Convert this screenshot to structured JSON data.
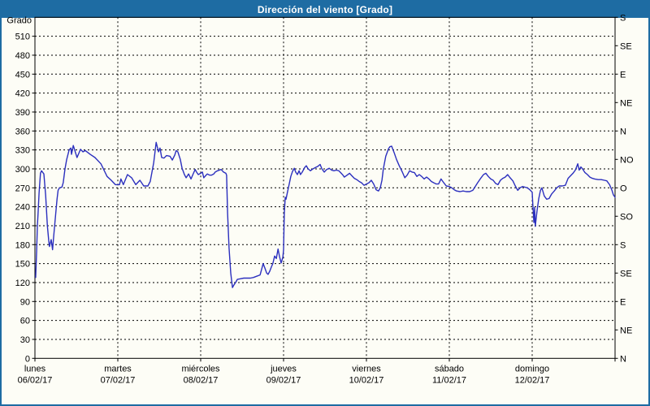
{
  "window": {
    "title": "Dirección del viento [Grado]"
  },
  "chart_data": {
    "type": "line",
    "title": "Dirección del viento [Grado]",
    "ylabel": "Grado",
    "y_axis_left": {
      "label": "Grado",
      "min": 0,
      "max": 540,
      "tick_step": 30,
      "labeled_max": 510
    },
    "y_axis_right": {
      "ticks": [
        {
          "deg": 540,
          "label": "S"
        },
        {
          "deg": 495,
          "label": "SE"
        },
        {
          "deg": 450,
          "label": "E"
        },
        {
          "deg": 405,
          "label": "NE"
        },
        {
          "deg": 360,
          "label": "N"
        },
        {
          "deg": 315,
          "label": "NO"
        },
        {
          "deg": 270,
          "label": "O"
        },
        {
          "deg": 225,
          "label": "SO"
        },
        {
          "deg": 180,
          "label": "S"
        },
        {
          "deg": 135,
          "label": "SE"
        },
        {
          "deg": 90,
          "label": "E"
        },
        {
          "deg": 45,
          "label": "NE"
        },
        {
          "deg": 0,
          "label": "N"
        }
      ]
    },
    "x_axis": {
      "hours_total": 168,
      "day_step_hours": 24,
      "days": [
        {
          "name": "lunes",
          "date": "06/02/17"
        },
        {
          "name": "martes",
          "date": "07/02/17"
        },
        {
          "name": "miércoles",
          "date": "08/02/17"
        },
        {
          "name": "jueves",
          "date": "09/02/17"
        },
        {
          "name": "viernes",
          "date": "10/02/17"
        },
        {
          "name": "sábado",
          "date": "11/02/17"
        },
        {
          "name": "domingo",
          "date": "12/02/17"
        }
      ]
    },
    "grid": {
      "style": "dashed",
      "horizontal_step_deg": 30,
      "vertical_step_hours": 24
    },
    "colors": {
      "line": "#2b2fbe",
      "titlebar": "#1e6ca3",
      "border": "#1e6ca3",
      "grid": "#000000",
      "background": "#fdfdf6",
      "text": "#000000"
    },
    "series": [
      {
        "name": "Dirección del viento",
        "unit": "Grado",
        "points": [
          [
            0.2,
            128
          ],
          [
            0.5,
            170
          ],
          [
            0.7,
            210
          ],
          [
            0.9,
            228
          ],
          [
            1.2,
            262
          ],
          [
            1.6,
            293
          ],
          [
            1.9,
            297
          ],
          [
            2.6,
            292
          ],
          [
            3.1,
            258
          ],
          [
            3.6,
            210
          ],
          [
            4.0,
            186
          ],
          [
            4.2,
            177
          ],
          [
            4.7,
            188
          ],
          [
            5.1,
            172
          ],
          [
            5.4,
            192
          ],
          [
            6.0,
            228
          ],
          [
            6.4,
            252
          ],
          [
            6.7,
            266
          ],
          [
            7.1,
            270
          ],
          [
            7.8,
            271
          ],
          [
            8.2,
            278
          ],
          [
            8.7,
            300
          ],
          [
            9.2,
            315
          ],
          [
            9.9,
            330
          ],
          [
            10.4,
            333
          ],
          [
            10.6,
            323
          ],
          [
            11.1,
            337
          ],
          [
            12.2,
            318
          ],
          [
            13.2,
            331
          ],
          [
            13.9,
            327
          ],
          [
            14.6,
            329
          ],
          [
            16.0,
            323
          ],
          [
            17.4,
            318
          ],
          [
            19.1,
            308
          ],
          [
            20.9,
            288
          ],
          [
            22.1,
            282
          ],
          [
            23.3,
            275
          ],
          [
            24.5,
            275
          ],
          [
            24.9,
            284
          ],
          [
            25.6,
            275
          ],
          [
            26.8,
            291
          ],
          [
            28.0,
            286
          ],
          [
            29.2,
            275
          ],
          [
            30.4,
            282
          ],
          [
            31.5,
            273
          ],
          [
            32.7,
            273
          ],
          [
            33.4,
            280
          ],
          [
            34.4,
            310
          ],
          [
            35.1,
            342
          ],
          [
            35.8,
            327
          ],
          [
            36.2,
            333
          ],
          [
            36.7,
            318
          ],
          [
            37.4,
            317
          ],
          [
            38.1,
            321
          ],
          [
            39.1,
            320
          ],
          [
            39.8,
            314
          ],
          [
            40.5,
            322
          ],
          [
            40.9,
            329
          ],
          [
            41.4,
            327
          ],
          [
            42.1,
            315
          ],
          [
            42.6,
            301
          ],
          [
            43.3,
            291
          ],
          [
            43.8,
            286
          ],
          [
            44.5,
            292
          ],
          [
            45.2,
            284
          ],
          [
            45.9,
            293
          ],
          [
            46.4,
            299
          ],
          [
            46.8,
            295
          ],
          [
            47.3,
            291
          ],
          [
            48.0,
            293
          ],
          [
            48.5,
            295
          ],
          [
            48.9,
            286
          ],
          [
            49.4,
            289
          ],
          [
            49.9,
            292
          ],
          [
            50.6,
            290
          ],
          [
            51.1,
            290
          ],
          [
            51.8,
            292
          ],
          [
            52.2,
            295
          ],
          [
            52.9,
            297
          ],
          [
            53.9,
            299
          ],
          [
            54.6,
            295
          ],
          [
            55.3,
            293
          ],
          [
            55.5,
            290
          ],
          [
            55.8,
            230
          ],
          [
            56.2,
            175
          ],
          [
            56.7,
            135
          ],
          [
            57.2,
            112
          ],
          [
            57.6,
            116
          ],
          [
            58.1,
            120
          ],
          [
            58.6,
            125
          ],
          [
            59.5,
            126
          ],
          [
            60.5,
            127
          ],
          [
            61.4,
            127
          ],
          [
            62.4,
            127
          ],
          [
            63.3,
            128
          ],
          [
            64.2,
            130
          ],
          [
            65.2,
            132
          ],
          [
            65.6,
            140
          ],
          [
            66.1,
            150
          ],
          [
            66.6,
            143
          ],
          [
            67.1,
            135
          ],
          [
            67.5,
            133
          ],
          [
            68.0,
            138
          ],
          [
            68.5,
            145
          ],
          [
            68.9,
            150
          ],
          [
            69.4,
            162
          ],
          [
            69.9,
            158
          ],
          [
            70.4,
            173
          ],
          [
            70.8,
            162
          ],
          [
            71.3,
            151
          ],
          [
            71.8,
            160
          ],
          [
            72.0,
            172
          ],
          [
            72.2,
            230
          ],
          [
            72.5,
            255
          ],
          [
            72.7,
            252
          ],
          [
            73.2,
            265
          ],
          [
            73.6,
            275
          ],
          [
            74.1,
            288
          ],
          [
            74.6,
            296
          ],
          [
            75.1,
            301
          ],
          [
            75.5,
            295
          ],
          [
            76.0,
            291
          ],
          [
            76.5,
            297
          ],
          [
            76.9,
            291
          ],
          [
            77.4,
            295
          ],
          [
            78.1,
            302
          ],
          [
            78.6,
            305
          ],
          [
            79.1,
            300
          ],
          [
            79.8,
            297
          ],
          [
            80.5,
            300
          ],
          [
            81.2,
            302
          ],
          [
            81.9,
            304
          ],
          [
            82.6,
            307
          ],
          [
            83.1,
            300
          ],
          [
            83.8,
            295
          ],
          [
            84.5,
            299
          ],
          [
            85.2,
            301
          ],
          [
            85.9,
            298
          ],
          [
            86.6,
            297
          ],
          [
            87.3,
            298
          ],
          [
            88.0,
            297
          ],
          [
            88.7,
            293
          ],
          [
            89.2,
            290
          ],
          [
            89.6,
            287
          ],
          [
            90.4,
            290
          ],
          [
            91.1,
            293
          ],
          [
            91.8,
            289
          ],
          [
            92.5,
            285
          ],
          [
            93.2,
            283
          ],
          [
            93.9,
            280
          ],
          [
            94.6,
            278
          ],
          [
            95.3,
            274
          ],
          [
            96.0,
            276
          ],
          [
            96.7,
            278
          ],
          [
            97.4,
            282
          ],
          [
            98.1,
            276
          ],
          [
            98.8,
            267
          ],
          [
            99.5,
            265
          ],
          [
            100.0,
            270
          ],
          [
            100.5,
            282
          ],
          [
            100.9,
            300
          ],
          [
            101.6,
            320
          ],
          [
            102.4,
            332
          ],
          [
            102.8,
            335
          ],
          [
            103.3,
            336
          ],
          [
            104.0,
            326
          ],
          [
            104.7,
            315
          ],
          [
            105.4,
            306
          ],
          [
            106.4,
            295
          ],
          [
            107.1,
            286
          ],
          [
            107.8,
            290
          ],
          [
            108.5,
            297
          ],
          [
            109.2,
            295
          ],
          [
            109.9,
            294
          ],
          [
            110.6,
            288
          ],
          [
            111.3,
            291
          ],
          [
            112.0,
            288
          ],
          [
            112.7,
            284
          ],
          [
            113.4,
            287
          ],
          [
            114.1,
            284
          ],
          [
            114.8,
            280
          ],
          [
            115.5,
            278
          ],
          [
            116.2,
            276
          ],
          [
            116.9,
            276
          ],
          [
            117.6,
            284
          ],
          [
            118.4,
            278
          ],
          [
            119.1,
            273
          ],
          [
            120.0,
            272
          ],
          [
            120.7,
            270
          ],
          [
            121.4,
            267
          ],
          [
            122.1,
            265
          ],
          [
            123.1,
            264
          ],
          [
            124.0,
            265
          ],
          [
            124.9,
            264
          ],
          [
            125.9,
            264
          ],
          [
            126.8,
            266
          ],
          [
            127.5,
            272
          ],
          [
            128.2,
            278
          ],
          [
            129.2,
            286
          ],
          [
            129.9,
            291
          ],
          [
            130.6,
            293
          ],
          [
            131.3,
            288
          ],
          [
            132.0,
            284
          ],
          [
            132.7,
            282
          ],
          [
            133.4,
            277
          ],
          [
            134.1,
            275
          ],
          [
            134.8,
            282
          ],
          [
            135.5,
            285
          ],
          [
            136.2,
            287
          ],
          [
            136.9,
            291
          ],
          [
            137.6,
            286
          ],
          [
            138.4,
            281
          ],
          [
            139.1,
            273
          ],
          [
            139.8,
            266
          ],
          [
            140.5,
            270
          ],
          [
            141.2,
            272
          ],
          [
            141.9,
            271
          ],
          [
            142.6,
            270
          ],
          [
            143.3,
            267
          ],
          [
            144.0,
            263
          ],
          [
            144.2,
            243
          ],
          [
            144.5,
            215
          ],
          [
            144.7,
            239
          ],
          [
            144.9,
            209
          ],
          [
            145.4,
            234
          ],
          [
            145.9,
            253
          ],
          [
            146.4,
            266
          ],
          [
            146.8,
            270
          ],
          [
            147.5,
            257
          ],
          [
            148.2,
            252
          ],
          [
            148.9,
            253
          ],
          [
            149.6,
            260
          ],
          [
            150.4,
            265
          ],
          [
            151.1,
            270
          ],
          [
            151.8,
            273
          ],
          [
            152.7,
            273
          ],
          [
            153.6,
            274
          ],
          [
            154.4,
            285
          ],
          [
            155.1,
            289
          ],
          [
            155.8,
            293
          ],
          [
            156.5,
            298
          ],
          [
            157.2,
            308
          ],
          [
            157.6,
            298
          ],
          [
            158.1,
            303
          ],
          [
            158.6,
            300
          ],
          [
            159.3,
            294
          ],
          [
            160.0,
            291
          ],
          [
            160.7,
            287
          ],
          [
            161.4,
            285
          ],
          [
            162.1,
            284
          ],
          [
            163.1,
            283
          ],
          [
            164.0,
            283
          ],
          [
            164.9,
            282
          ],
          [
            165.6,
            281
          ],
          [
            166.4,
            275
          ],
          [
            167.1,
            266
          ],
          [
            167.5,
            259
          ],
          [
            168.0,
            255
          ]
        ]
      }
    ]
  }
}
